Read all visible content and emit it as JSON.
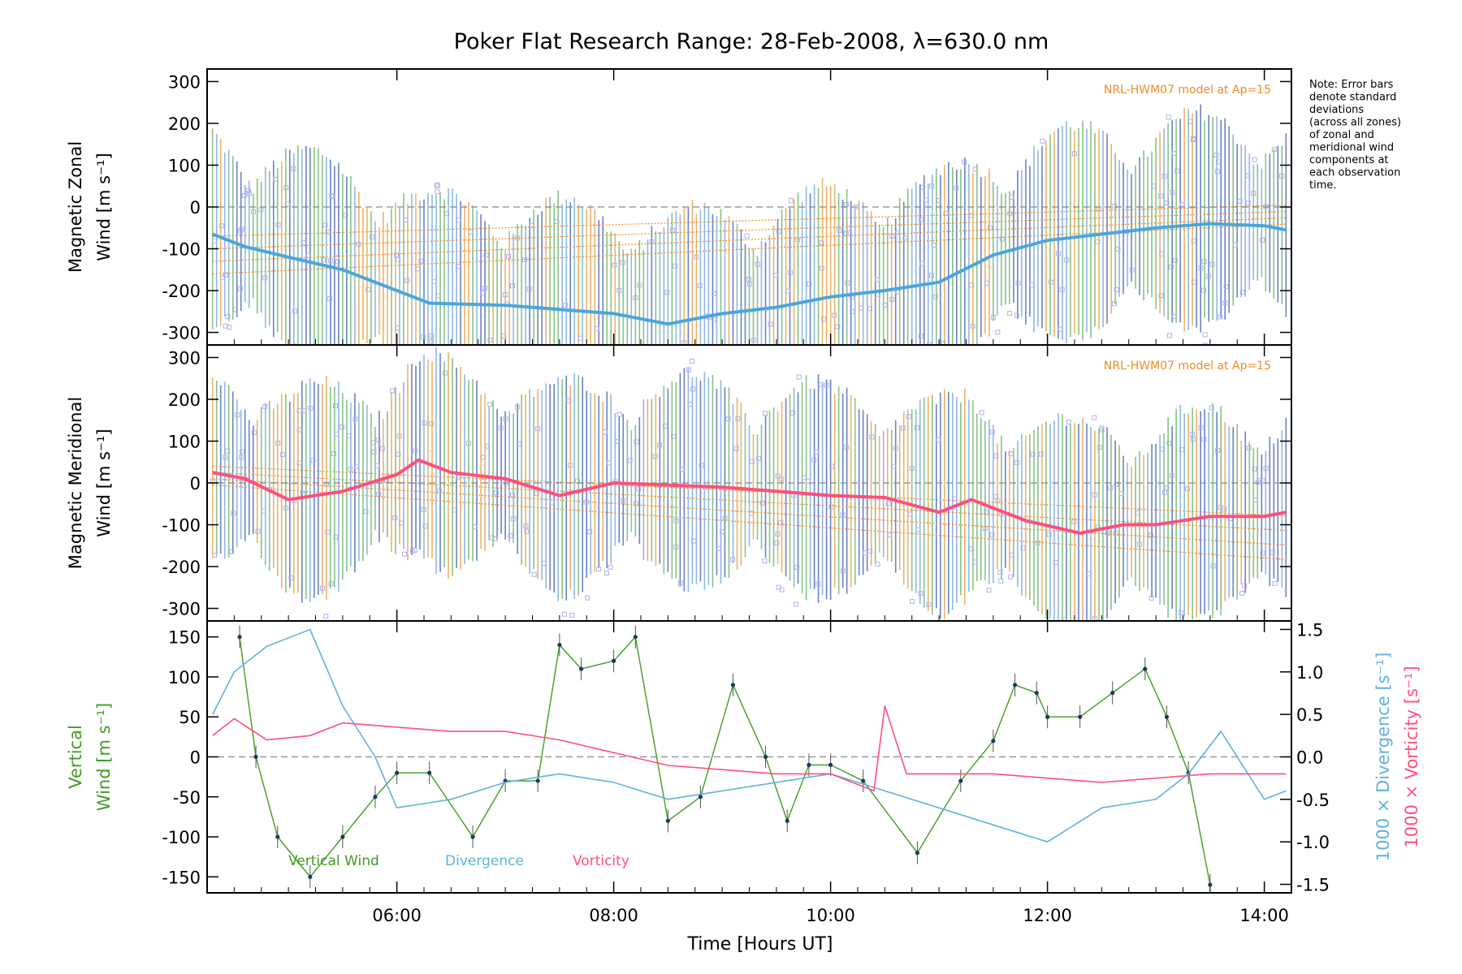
{
  "title": "Poker Flat Research Range: 28-Feb-2008, λ=630.0 nm",
  "note": [
    "Note: Error bars",
    "denote standard",
    "deviations",
    "(across all zones)",
    "of zonal and",
    "meridional wind",
    "components at",
    "each observation",
    "time."
  ],
  "colors": {
    "zonal_line": "#4aa6dc",
    "meridional_line": "#ff4f7c",
    "vertical": "#3f9c22",
    "divergence": "#5fb2dc",
    "vorticity": "#ff4f7c",
    "model": "#f08a24",
    "scatter": "#b0b0f0",
    "errorbar": "#3a58b0",
    "zeroline": "#888888"
  },
  "chart_data": [
    {
      "type": "line",
      "panel": "zonal",
      "ylabel_lines": [
        "Magnetic Zonal",
        "Wind [m s⁻¹]"
      ],
      "ylim": [
        -330,
        330
      ],
      "yticks": [
        -300,
        -200,
        -100,
        0,
        100,
        200,
        300
      ],
      "model_label": "NRL-HWM07 model at Ap=15",
      "series": [
        {
          "values": [
            [
              4.3,
              -65
            ],
            [
              4.6,
              -95
            ],
            [
              5.0,
              -120
            ],
            [
              5.5,
              -150
            ],
            [
              5.9,
              -190
            ],
            [
              6.3,
              -230
            ],
            [
              7.0,
              -235
            ],
            [
              7.5,
              -245
            ],
            [
              8.0,
              -255
            ],
            [
              8.5,
              -280
            ],
            [
              9.0,
              -255
            ],
            [
              9.5,
              -240
            ],
            [
              10.0,
              -215
            ],
            [
              10.5,
              -200
            ],
            [
              11.0,
              -180
            ],
            [
              11.5,
              -115
            ],
            [
              12.0,
              -80
            ],
            [
              12.5,
              -65
            ],
            [
              13.0,
              -50
            ],
            [
              13.5,
              -40
            ],
            [
              14.0,
              -45
            ],
            [
              14.2,
              -55
            ]
          ]
        }
      ]
    },
    {
      "type": "line",
      "panel": "meridional",
      "ylabel_lines": [
        "Magnetic Meridional",
        "Wind [m s⁻¹]"
      ],
      "ylim": [
        -330,
        330
      ],
      "yticks": [
        -300,
        -200,
        -100,
        0,
        100,
        200,
        300
      ],
      "model_label": "NRL-HWM07 model at Ap=15",
      "series": [
        {
          "values": [
            [
              4.3,
              25
            ],
            [
              4.6,
              10
            ],
            [
              5.0,
              -40
            ],
            [
              5.5,
              -20
            ],
            [
              6.0,
              20
            ],
            [
              6.2,
              55
            ],
            [
              6.5,
              25
            ],
            [
              7.0,
              10
            ],
            [
              7.5,
              -30
            ],
            [
              8.0,
              0
            ],
            [
              8.5,
              -5
            ],
            [
              9.0,
              -10
            ],
            [
              9.5,
              -20
            ],
            [
              10.0,
              -30
            ],
            [
              10.5,
              -35
            ],
            [
              11.0,
              -70
            ],
            [
              11.3,
              -40
            ],
            [
              11.8,
              -90
            ],
            [
              12.3,
              -120
            ],
            [
              12.7,
              -100
            ],
            [
              13.0,
              -100
            ],
            [
              13.5,
              -80
            ],
            [
              14.0,
              -80
            ],
            [
              14.2,
              -70
            ]
          ]
        }
      ]
    },
    {
      "type": "line",
      "panel": "vertical",
      "ylabel_lines": [
        "Vertical",
        "Wind [m s⁻¹]"
      ],
      "ylim": [
        -170,
        170
      ],
      "yticks": [
        -150,
        -100,
        -50,
        0,
        50,
        100,
        150
      ],
      "y2label_lines": [
        "1000 × Divergence [s⁻¹]",
        "1000 × Vorticity [s⁻¹]"
      ],
      "y2lim": [
        -1.6,
        1.6
      ],
      "y2ticks": [
        -1.5,
        -1.0,
        -0.5,
        0.0,
        0.5,
        1.0,
        1.5
      ],
      "legend": [
        "Vertical Wind",
        "Divergence",
        "Vorticity"
      ],
      "series": [
        {
          "name": "Vertical Wind",
          "values": [
            [
              4.55,
              150
            ],
            [
              4.7,
              0
            ],
            [
              4.9,
              -100
            ],
            [
              5.2,
              -150
            ],
            [
              5.5,
              -100
            ],
            [
              5.8,
              -50
            ],
            [
              6.0,
              -20
            ],
            [
              6.3,
              -20
            ],
            [
              6.7,
              -100
            ],
            [
              7.0,
              -30
            ],
            [
              7.3,
              -30
            ],
            [
              7.5,
              140
            ],
            [
              7.7,
              110
            ],
            [
              8.0,
              120
            ],
            [
              8.2,
              150
            ],
            [
              8.5,
              -80
            ],
            [
              8.8,
              -50
            ],
            [
              9.1,
              90
            ],
            [
              9.4,
              0
            ],
            [
              9.6,
              -80
            ],
            [
              9.8,
              -10
            ],
            [
              10.0,
              -10
            ],
            [
              10.3,
              -30
            ],
            [
              10.8,
              -120
            ],
            [
              11.2,
              -30
            ],
            [
              11.5,
              20
            ],
            [
              11.7,
              90
            ],
            [
              11.9,
              80
            ],
            [
              12.0,
              50
            ],
            [
              12.3,
              50
            ],
            [
              12.6,
              80
            ],
            [
              12.9,
              110
            ],
            [
              13.1,
              50
            ],
            [
              13.3,
              -20
            ],
            [
              13.5,
              -160
            ]
          ]
        },
        {
          "name": "Divergence",
          "values": [
            [
              4.3,
              0.5
            ],
            [
              4.5,
              1.0
            ],
            [
              4.8,
              1.3
            ],
            [
              5.2,
              1.5
            ],
            [
              5.5,
              0.6
            ],
            [
              5.8,
              0.0
            ],
            [
              6.0,
              -0.6
            ],
            [
              6.5,
              -0.5
            ],
            [
              7.0,
              -0.3
            ],
            [
              7.5,
              -0.2
            ],
            [
              8.0,
              -0.3
            ],
            [
              8.5,
              -0.5
            ],
            [
              9.0,
              -0.4
            ],
            [
              9.5,
              -0.3
            ],
            [
              10.0,
              -0.2
            ],
            [
              10.5,
              -0.4
            ],
            [
              11.0,
              -0.6
            ],
            [
              11.5,
              -0.8
            ],
            [
              12.0,
              -1.0
            ],
            [
              12.5,
              -0.6
            ],
            [
              13.0,
              -0.5
            ],
            [
              13.3,
              -0.2
            ],
            [
              13.6,
              0.3
            ],
            [
              14.0,
              -0.5
            ],
            [
              14.2,
              -0.4
            ]
          ]
        },
        {
          "name": "Vorticity",
          "values": [
            [
              4.3,
              0.25
            ],
            [
              4.5,
              0.45
            ],
            [
              4.8,
              0.2
            ],
            [
              5.2,
              0.25
            ],
            [
              5.5,
              0.4
            ],
            [
              6.0,
              0.35
            ],
            [
              6.5,
              0.3
            ],
            [
              7.0,
              0.3
            ],
            [
              7.5,
              0.2
            ],
            [
              8.0,
              0.05
            ],
            [
              8.5,
              -0.1
            ],
            [
              9.0,
              -0.15
            ],
            [
              9.5,
              -0.2
            ],
            [
              10.0,
              -0.2
            ],
            [
              10.4,
              -0.4
            ],
            [
              10.5,
              0.6
            ],
            [
              10.7,
              -0.2
            ],
            [
              11.0,
              -0.2
            ],
            [
              11.5,
              -0.2
            ],
            [
              12.0,
              -0.25
            ],
            [
              12.5,
              -0.3
            ],
            [
              13.0,
              -0.25
            ],
            [
              13.5,
              -0.2
            ],
            [
              14.2,
              -0.2
            ]
          ]
        }
      ]
    }
  ],
  "xaxis": {
    "label": "Time [Hours UT]",
    "xlim": [
      4.25,
      14.25
    ],
    "ticks": [
      6,
      8,
      10,
      12,
      14
    ],
    "tick_labels": [
      "06:00",
      "08:00",
      "10:00",
      "12:00",
      "14:00"
    ]
  }
}
